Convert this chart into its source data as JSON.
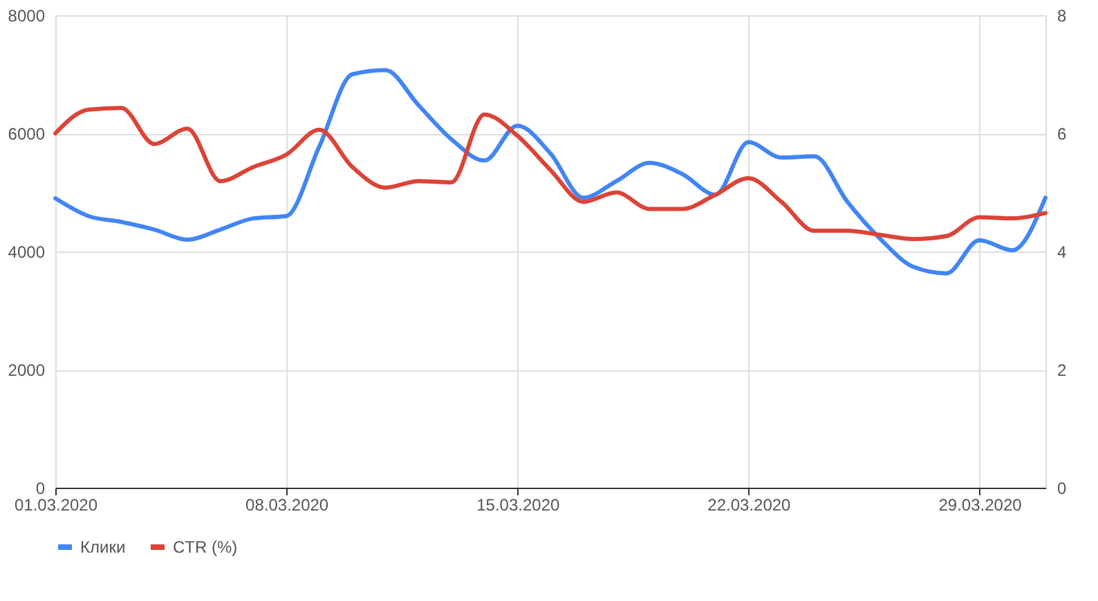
{
  "chart_data": {
    "type": "line",
    "x": [
      "2020-03-01",
      "2020-03-02",
      "2020-03-03",
      "2020-03-04",
      "2020-03-05",
      "2020-03-06",
      "2020-03-07",
      "2020-03-08",
      "2020-03-09",
      "2020-03-10",
      "2020-03-11",
      "2020-03-12",
      "2020-03-13",
      "2020-03-14",
      "2020-03-15",
      "2020-03-16",
      "2020-03-17",
      "2020-03-18",
      "2020-03-19",
      "2020-03-20",
      "2020-03-21",
      "2020-03-22",
      "2020-03-23",
      "2020-03-24",
      "2020-03-25",
      "2020-03-26",
      "2020-03-27",
      "2020-03-28",
      "2020-03-29",
      "2020-03-30",
      "2020-03-31"
    ],
    "series": [
      {
        "name": "Клики",
        "color": "#4285f4",
        "values": [
          4900,
          4600,
          4500,
          4370,
          4200,
          4370,
          4560,
          4600,
          5780,
          7000,
          7070,
          6480,
          5900,
          5540,
          6130,
          5660,
          4910,
          5190,
          5500,
          5310,
          4960,
          5850,
          5590,
          5610,
          4840,
          4210,
          3740,
          3630,
          4190,
          4020,
          4910
        ]
      },
      {
        "name": "CTR (%)",
        "color": "#db4437",
        "axis": "y2",
        "values": [
          6.0,
          6.4,
          6.43,
          5.82,
          6.08,
          5.19,
          5.43,
          5.64,
          6.06,
          5.43,
          5.08,
          5.19,
          5.17,
          6.32,
          5.96,
          5.38,
          4.84,
          5.0,
          4.72,
          4.72,
          4.96,
          5.24,
          4.84,
          4.35,
          4.35,
          4.28,
          4.21,
          4.26,
          4.58,
          4.56,
          4.65
        ]
      }
    ],
    "xlim": [
      "2020-03-01",
      "2020-03-31"
    ],
    "xticks": [
      {
        "value": "2020-03-01",
        "label": "01.03.2020"
      },
      {
        "value": "2020-03-08",
        "label": "08.03.2020"
      },
      {
        "value": "2020-03-15",
        "label": "15.03.2020"
      },
      {
        "value": "2020-03-22",
        "label": "22.03.2020"
      },
      {
        "value": "2020-03-29",
        "label": "29.03.2020"
      }
    ],
    "ylim": [
      0,
      8000
    ],
    "yticks": [
      0,
      2000,
      4000,
      6000,
      8000
    ],
    "y2lim": [
      0,
      8
    ],
    "y2ticks": [
      0,
      2,
      4,
      6,
      8
    ],
    "grid": true,
    "legend": "bottom",
    "marker": "none",
    "line_style": "solid"
  }
}
